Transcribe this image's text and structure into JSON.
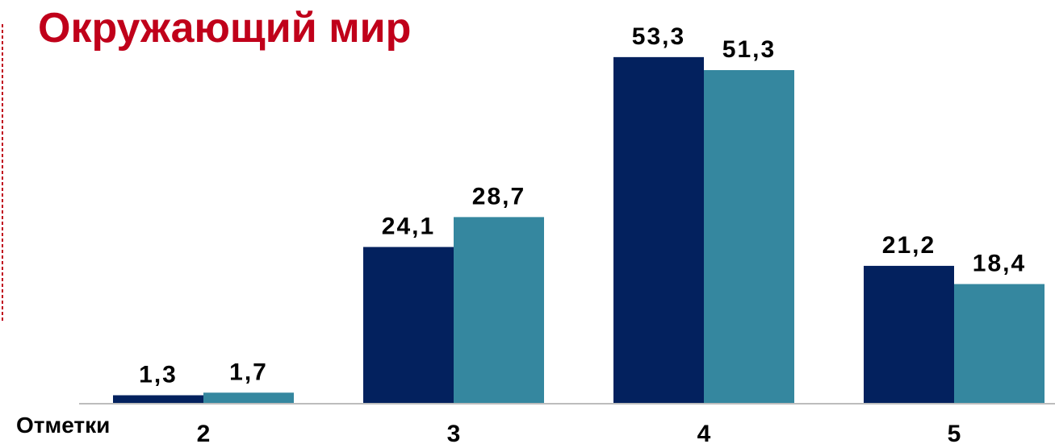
{
  "colors": {
    "title": "#c0001a",
    "series_1": "#03215e",
    "series_2": "#35879f",
    "axis": "#bdbdbd",
    "border_dash": "#c0001a"
  },
  "chart_data": {
    "type": "bar",
    "title": "Окружающий мир",
    "xlabel": "Отметки",
    "ylabel": "",
    "categories": [
      "2",
      "3",
      "4",
      "5"
    ],
    "series": [
      {
        "values": [
          1.3,
          24.1,
          53.3,
          21.2
        ]
      },
      {
        "values": [
          1.7,
          28.7,
          51.3,
          18.4
        ]
      }
    ],
    "data_labels": [
      [
        "1,3",
        "24,1",
        "53,3",
        "21,2"
      ],
      [
        "1,7",
        "28,7",
        "51,3",
        "18,4"
      ]
    ],
    "ylim": [
      0,
      60
    ],
    "grid": false,
    "legend": "none"
  }
}
